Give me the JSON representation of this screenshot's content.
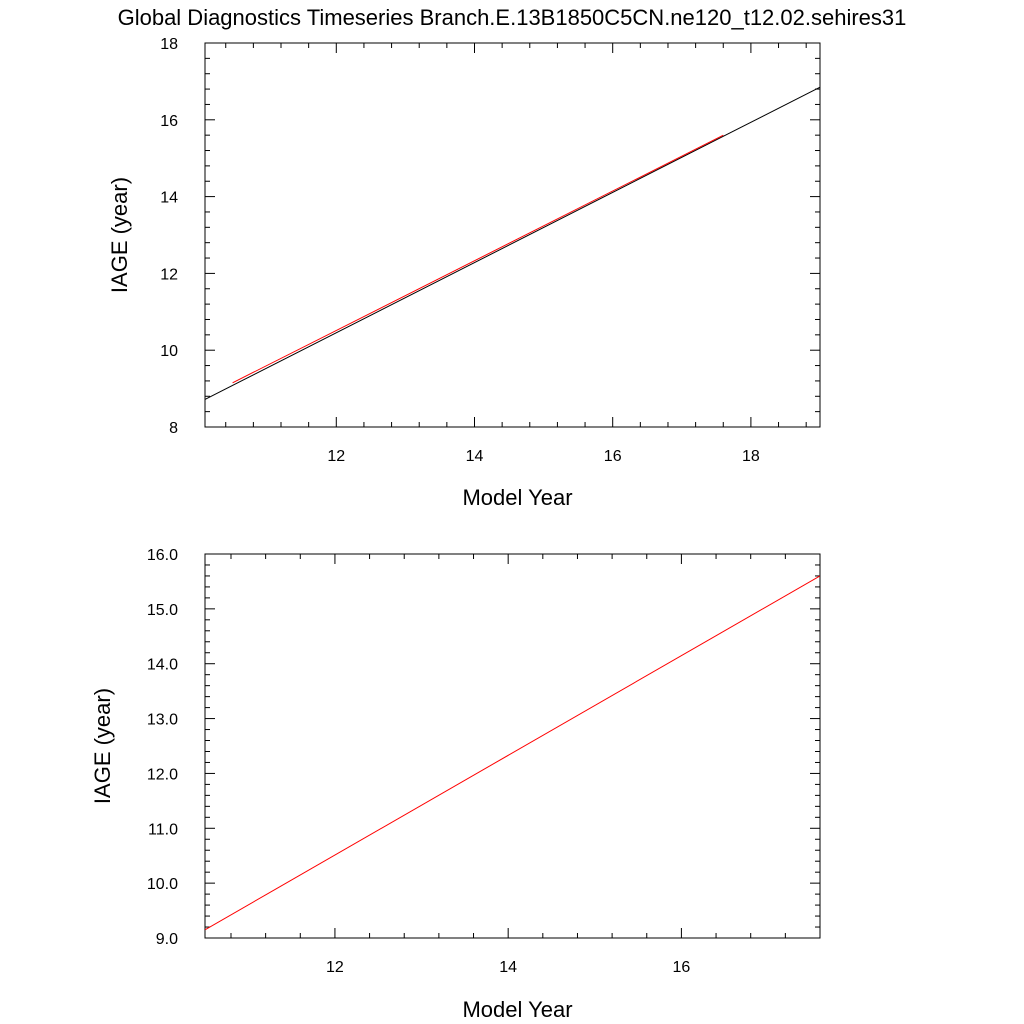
{
  "title": "Global Diagnostics Timeseries Branch.E.13B1850C5CN.ne120_t12.02.sehires31",
  "chart_data": [
    {
      "type": "line",
      "xlabel": "Model Year",
      "ylabel": "IAGE (year)",
      "xlim": [
        10.1,
        19.0
      ],
      "ylim": [
        8,
        18
      ],
      "xticks": [
        12,
        14,
        16,
        18
      ],
      "yticks": [
        8,
        10,
        12,
        14,
        16,
        18
      ],
      "ytick_labels": [
        "8",
        "10",
        "12",
        "14",
        "16",
        "18"
      ],
      "grid": false,
      "series": [
        {
          "color": "#000000",
          "x": [
            10.1,
            19.0
          ],
          "y": [
            8.72,
            16.85
          ]
        },
        {
          "color": "#ff0000",
          "x": [
            10.5,
            17.6
          ],
          "y": [
            9.15,
            15.6
          ]
        }
      ]
    },
    {
      "type": "line",
      "xlabel": "Model Year",
      "ylabel": "IAGE (year)",
      "xlim": [
        10.5,
        17.6
      ],
      "ylim": [
        9.0,
        16.0
      ],
      "xticks": [
        12,
        14,
        16
      ],
      "yticks": [
        9,
        10,
        11,
        12,
        13,
        14,
        15,
        16
      ],
      "ytick_labels": [
        "9.0",
        "10.0",
        "11.0",
        "12.0",
        "13.0",
        "14.0",
        "15.0",
        "16.0"
      ],
      "grid": false,
      "series": [
        {
          "color": "#ff0000",
          "x": [
            10.5,
            17.6
          ],
          "y": [
            9.15,
            15.6
          ]
        }
      ]
    }
  ]
}
